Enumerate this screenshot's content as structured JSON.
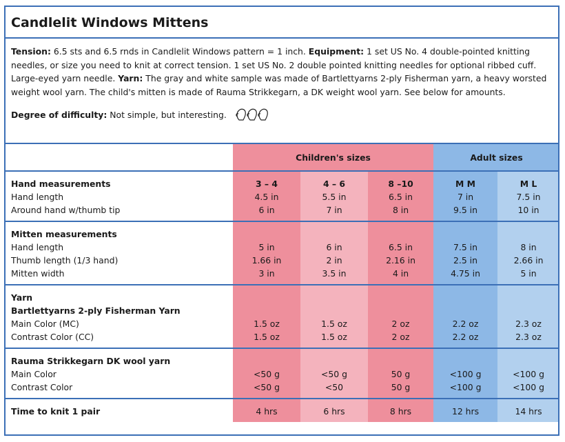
{
  "title": "Candlelit Windows Mittens",
  "intro": {
    "tension_label": "Tension:",
    "tension_text": "6.5 sts and 6.5 rnds in Candlelit Windows pattern = 1 inch.",
    "equipment_label": "Equipment:",
    "equipment_text": "1 set US No. 4 double-pointed knitting needles, or size you need to knit at correct tension. 1 set US No. 2 double pointed knitting needles for optional ribbed cuff. Large-eyed yarn needle.",
    "yarn_label": "Yarn:",
    "yarn_text": "The gray and white sample was made of Bartlettyarns 2-ply Fisherman yarn, a heavy worsted weight wool yarn. The child's mitten is made of Rauma Strikkegarn, a DK weight wool yarn. See below for amounts.",
    "difficulty_label": "Degree of difficulty:",
    "difficulty_text": "Not simple, but interesting.",
    "difficulty_icon": "mitten-icons"
  },
  "table": {
    "childrens_sizes": "Children's sizes",
    "adult_sizes": "Adult sizes",
    "colors": {
      "pink_dark": "#ee8f9c",
      "pink_light": "#f4b3bd",
      "blue_dark": "#8db8e6",
      "blue_light": "#b2d0ee",
      "border": "#3b6fb6"
    },
    "hand": {
      "heading": "Hand measurements",
      "rows": [
        "Hand length",
        "Around hand w/thumb tip"
      ],
      "sizes": [
        "3 – 4",
        "4 – 6",
        "8 –10",
        "M M",
        "M L"
      ],
      "length": [
        "4.5 in",
        "5.5 in",
        "6.5 in",
        "7 in",
        "7.5 in"
      ],
      "around": [
        "6 in",
        "7 in",
        "8 in",
        "9.5 in",
        "10 in"
      ]
    },
    "mitten": {
      "heading": "Mitten measurements",
      "rows": [
        "Hand length",
        "Thumb length (1/3 hand)",
        "Mitten width"
      ],
      "hand_length": [
        "5 in",
        "6 in",
        "6.5 in",
        "7.5 in",
        "8 in"
      ],
      "thumb_length": [
        "1.66 in",
        "2 in",
        "2.16 in",
        "2.5 in",
        "2.66 in"
      ],
      "width": [
        "3 in",
        "3.5 in",
        "4 in",
        "4.75 in",
        "5 in"
      ]
    },
    "yarn": {
      "heading": "Yarn",
      "subheading": "Bartlettyarns 2-ply Fisherman Yarn",
      "rows": [
        "Main Color (MC)",
        "Contrast Color (CC)"
      ],
      "mc": [
        "1.5 oz",
        "1.5 oz",
        "2 oz",
        "2.2 oz",
        "2.3 oz"
      ],
      "cc": [
        "1.5 oz",
        "1.5 oz",
        "2 oz",
        "2.2 oz",
        "2.3 oz"
      ]
    },
    "rauma": {
      "heading": "Rauma Strikkegarn DK wool yarn",
      "rows": [
        "Main Color",
        "Contrast Color"
      ],
      "mc": [
        "<50 g",
        "<50 g",
        "50 g",
        "<100 g",
        "<100 g"
      ],
      "cc": [
        "<50 g",
        "<50",
        "50 g",
        "<100 g",
        "<100 g"
      ]
    },
    "time": {
      "heading": "Time to knit 1 pair",
      "values": [
        "4 hrs",
        "6 hrs",
        "8 hrs",
        "12 hrs",
        "14 hrs"
      ]
    }
  }
}
